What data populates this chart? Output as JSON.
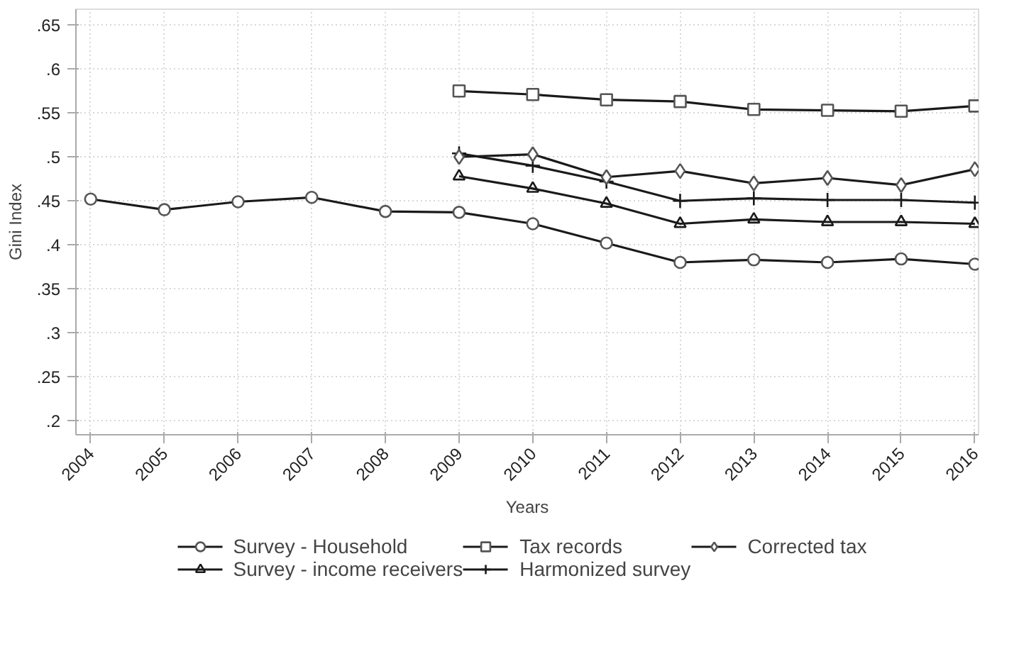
{
  "chart_data": {
    "type": "line",
    "xlabel": "Years",
    "ylabel": "Gini Index",
    "x": [
      2004,
      2005,
      2006,
      2007,
      2008,
      2009,
      2010,
      2011,
      2012,
      2013,
      2014,
      2015,
      2016
    ],
    "xlim": [
      2003.8,
      2016.05
    ],
    "ylim": [
      0.184,
      0.668
    ],
    "xticks": [
      2004,
      2005,
      2006,
      2007,
      2008,
      2009,
      2010,
      2011,
      2012,
      2013,
      2014,
      2015,
      2016
    ],
    "yticks": [
      {
        "value": 0.2,
        "label": ".2"
      },
      {
        "value": 0.25,
        "label": ".25"
      },
      {
        "value": 0.3,
        "label": ".3"
      },
      {
        "value": 0.35,
        "label": ".35"
      },
      {
        "value": 0.4,
        "label": ".4"
      },
      {
        "value": 0.45,
        "label": ".45"
      },
      {
        "value": 0.5,
        "label": ".5"
      },
      {
        "value": 0.55,
        "label": ".55"
      },
      {
        "value": 0.6,
        "label": ".6"
      },
      {
        "value": 0.65,
        "label": ".65"
      }
    ],
    "grid": true,
    "legend": "bottom",
    "line_style": "solid",
    "series": [
      {
        "name": "Survey - Household",
        "color": "#1a1a1a",
        "marker": "circle",
        "values": [
          0.452,
          0.44,
          0.449,
          0.454,
          0.438,
          0.437,
          0.424,
          0.402,
          0.38,
          0.383,
          0.38,
          0.384,
          0.378
        ]
      },
      {
        "name": "Survey - income receivers",
        "color": "#1a1a1a",
        "marker": "triangle",
        "values": [
          null,
          null,
          null,
          null,
          null,
          0.478,
          0.464,
          0.447,
          0.424,
          0.429,
          0.426,
          0.426,
          0.424
        ]
      },
      {
        "name": "Tax records",
        "color": "#1a1a1a",
        "marker": "square",
        "values": [
          null,
          null,
          null,
          null,
          null,
          0.575,
          0.571,
          0.565,
          0.563,
          0.554,
          0.553,
          0.552,
          0.558
        ]
      },
      {
        "name": "Harmonized survey",
        "color": "#1a1a1a",
        "marker": "cross",
        "values": [
          null,
          null,
          null,
          null,
          null,
          0.504,
          0.49,
          0.472,
          0.45,
          0.453,
          0.451,
          0.451,
          0.448
        ]
      },
      {
        "name": "Corrected tax",
        "color": "#1a1a1a",
        "marker": "diamond",
        "values": [
          null,
          null,
          null,
          null,
          null,
          0.5,
          0.503,
          0.477,
          0.484,
          0.47,
          0.476,
          0.468,
          0.486
        ]
      }
    ]
  }
}
